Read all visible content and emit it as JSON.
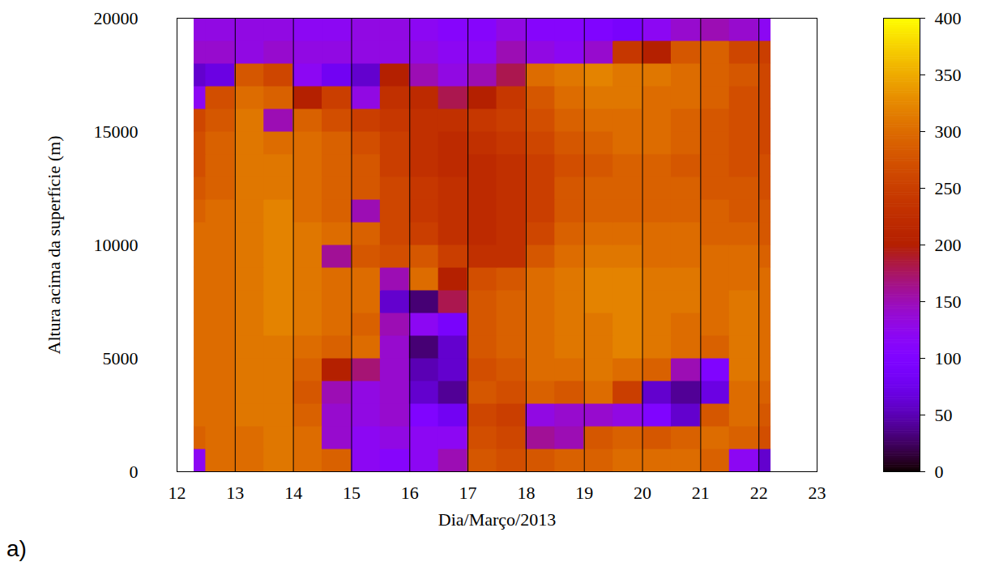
{
  "chart_data": {
    "type": "heatmap",
    "panel_label": "a)",
    "x_label": "Dia/Março/2013",
    "y_label": "Altura acima da superfície (m)",
    "xlim": [
      12,
      23
    ],
    "xticks": [
      12,
      13,
      14,
      15,
      16,
      17,
      18,
      19,
      20,
      21,
      22,
      23
    ],
    "ylim": [
      0,
      20000
    ],
    "yticks": [
      0,
      5000,
      10000,
      15000,
      20000
    ],
    "x_bins": [
      12.3,
      12.5,
      13,
      13.5,
      14,
      14.5,
      15,
      15.5,
      16,
      16.5,
      17,
      17.5,
      18,
      18.5,
      19,
      19.5,
      20,
      20.5,
      21,
      21.5,
      22,
      22.2
    ],
    "y_bins": [
      0,
      1000,
      2000,
      3000,
      4000,
      5000,
      6000,
      7000,
      8000,
      9000,
      10000,
      11000,
      12000,
      13000,
      14000,
      15000,
      16000,
      17000,
      18000,
      19000,
      20000
    ],
    "values": [
      [
        120,
        300,
        300,
        310,
        300,
        290,
        120,
        110,
        120,
        150,
        280,
        270,
        280,
        290,
        290,
        300,
        300,
        300,
        290,
        120,
        60
      ],
      [
        290,
        300,
        300,
        310,
        300,
        140,
        120,
        130,
        120,
        120,
        270,
        260,
        160,
        150,
        280,
        290,
        280,
        290,
        300,
        290,
        270
      ],
      [
        300,
        300,
        310,
        310,
        290,
        140,
        130,
        140,
        100,
        80,
        260,
        250,
        130,
        140,
        140,
        130,
        100,
        60,
        280,
        300,
        280
      ],
      [
        300,
        300,
        310,
        310,
        280,
        150,
        130,
        140,
        60,
        40,
        280,
        270,
        290,
        280,
        300,
        250,
        60,
        40,
        70,
        300,
        290
      ],
      [
        300,
        300,
        310,
        310,
        290,
        200,
        170,
        140,
        50,
        60,
        270,
        280,
        300,
        300,
        310,
        300,
        290,
        150,
        100,
        310,
        300
      ],
      [
        300,
        300,
        310,
        310,
        300,
        290,
        300,
        140,
        30,
        60,
        280,
        290,
        300,
        310,
        310,
        320,
        310,
        300,
        290,
        310,
        300
      ],
      [
        300,
        300,
        310,
        320,
        310,
        300,
        290,
        150,
        120,
        90,
        280,
        290,
        300,
        310,
        310,
        320,
        310,
        300,
        300,
        310,
        300
      ],
      [
        300,
        300,
        310,
        320,
        310,
        300,
        300,
        60,
        30,
        180,
        280,
        290,
        300,
        310,
        320,
        320,
        310,
        310,
        300,
        310,
        300
      ],
      [
        300,
        300,
        310,
        320,
        310,
        300,
        300,
        150,
        300,
        200,
        270,
        280,
        300,
        310,
        320,
        320,
        310,
        310,
        300,
        300,
        300
      ],
      [
        300,
        300,
        310,
        320,
        310,
        160,
        280,
        270,
        280,
        250,
        230,
        230,
        280,
        300,
        310,
        310,
        300,
        300,
        300,
        300,
        290
      ],
      [
        300,
        300,
        310,
        320,
        310,
        300,
        290,
        260,
        250,
        230,
        220,
        230,
        260,
        290,
        300,
        300,
        300,
        300,
        290,
        290,
        280
      ],
      [
        290,
        300,
        310,
        320,
        300,
        290,
        150,
        260,
        240,
        230,
        220,
        230,
        250,
        280,
        290,
        290,
        290,
        290,
        290,
        280,
        280
      ],
      [
        280,
        290,
        310,
        310,
        300,
        290,
        280,
        260,
        240,
        230,
        220,
        230,
        250,
        280,
        290,
        290,
        290,
        290,
        280,
        280,
        270
      ],
      [
        270,
        290,
        310,
        310,
        300,
        290,
        280,
        250,
        230,
        220,
        220,
        230,
        250,
        270,
        280,
        290,
        290,
        280,
        280,
        270,
        270
      ],
      [
        270,
        290,
        310,
        300,
        300,
        290,
        270,
        250,
        230,
        220,
        230,
        240,
        260,
        280,
        290,
        300,
        300,
        290,
        280,
        270,
        260
      ],
      [
        260,
        280,
        310,
        150,
        290,
        270,
        250,
        240,
        230,
        230,
        240,
        250,
        270,
        290,
        300,
        300,
        300,
        290,
        280,
        270,
        260
      ],
      [
        120,
        270,
        300,
        290,
        200,
        250,
        130,
        230,
        220,
        180,
        200,
        240,
        280,
        300,
        310,
        310,
        300,
        300,
        290,
        270,
        260
      ],
      [
        60,
        70,
        280,
        260,
        120,
        80,
        60,
        200,
        150,
        130,
        150,
        180,
        300,
        310,
        320,
        310,
        310,
        300,
        290,
        280,
        260
      ],
      [
        140,
        140,
        130,
        140,
        130,
        130,
        130,
        130,
        130,
        120,
        120,
        150,
        130,
        120,
        140,
        240,
        200,
        280,
        290,
        260,
        250
      ],
      [
        130,
        130,
        130,
        130,
        120,
        120,
        130,
        130,
        120,
        110,
        110,
        130,
        110,
        110,
        100,
        90,
        120,
        140,
        150,
        140,
        120
      ]
    ],
    "colorbar_range": [
      0,
      400
    ],
    "colorbar_ticks": [
      0,
      50,
      100,
      150,
      200,
      250,
      300,
      350,
      400
    ]
  }
}
